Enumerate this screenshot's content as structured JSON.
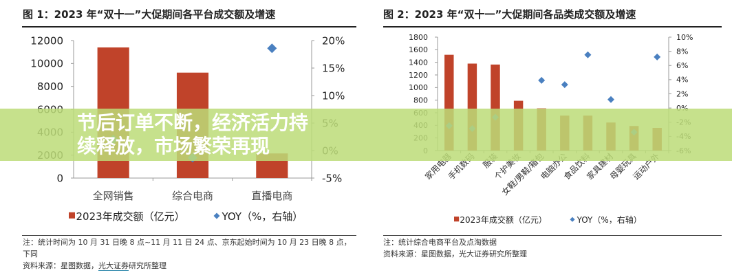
{
  "colors": {
    "bar": "#c0432a",
    "yoy": "#4a80c0",
    "banner": "#bcdc78"
  },
  "chart_data": [
    {
      "type": "bar",
      "title": "图 1：2023 年“双十一”大促期间各平台成交额及增速",
      "categories": [
        "全网销售",
        "综合电商",
        "直播电商"
      ],
      "series": [
        {
          "name": "2023年成交额（亿元）",
          "type": "bar",
          "axis": "left",
          "values": [
            11400,
            9200,
            2150
          ]
        },
        {
          "name": "YOY（%，右轴）",
          "type": "scatter",
          "axis": "right",
          "values": [
            2.0,
            -1.3,
            18.6
          ]
        }
      ],
      "ylim": [
        0,
        12000
      ],
      "yticks": [
        "0",
        "2000",
        "4000",
        "6000",
        "8000",
        "10000",
        "12000"
      ],
      "y2lim": [
        -5,
        20
      ],
      "y2ticks": [
        "-5%",
        "0%",
        "5%",
        "10%",
        "15%",
        "20%"
      ],
      "legend": "bottom",
      "grid": false,
      "note": "注：统计时间为 10 月 31 日晚 8 点~11 月 11 日 24 点、京东起始时间为 10 月 23 日晚 8 点，下同",
      "source_prefix": "资料来源：星图数据，",
      "source_link": "光大证券",
      "source_suffix": "研究所整理"
    },
    {
      "type": "bar",
      "title": "图 2：2023 年“双十一”大促期间各品类成交额及增速",
      "categories": [
        "家用电器",
        "手机数码",
        "服装",
        "个护美妆",
        "女鞋/男鞋/箱包",
        "电脑办公",
        "食品饮料",
        "家具建材",
        "母婴玩具",
        "运动户外"
      ],
      "series": [
        {
          "name": "2023年成交额（亿元）",
          "type": "bar",
          "axis": "left",
          "values": [
            1520,
            1380,
            1365,
            790,
            670,
            555,
            555,
            445,
            390,
            360
          ]
        },
        {
          "name": "YOY（%，右轴）",
          "type": "scatter",
          "axis": "right",
          "values": [
            -2.5,
            -2.9,
            -1.3,
            null,
            3.9,
            3.3,
            7.5,
            1.2,
            -3.4,
            7.2
          ]
        }
      ],
      "ylim": [
        0,
        1800
      ],
      "yticks": [
        "0",
        "200",
        "400",
        "600",
        "800",
        "1000",
        "1200",
        "1400",
        "1600",
        "1800"
      ],
      "y2lim": [
        -6,
        10
      ],
      "y2ticks": [
        "-6%",
        "-4%",
        "-2%",
        "0%",
        "2%",
        "4%",
        "6%",
        "8%",
        "10%"
      ],
      "legend": "bottom",
      "grid": false,
      "note": "注：统计综合电商平台及点淘数据",
      "source": "资料来源：星图数据，光大证券研究所整理"
    }
  ],
  "banner": "节后订单不断，经济活力持续释放，市场繁荣再现"
}
